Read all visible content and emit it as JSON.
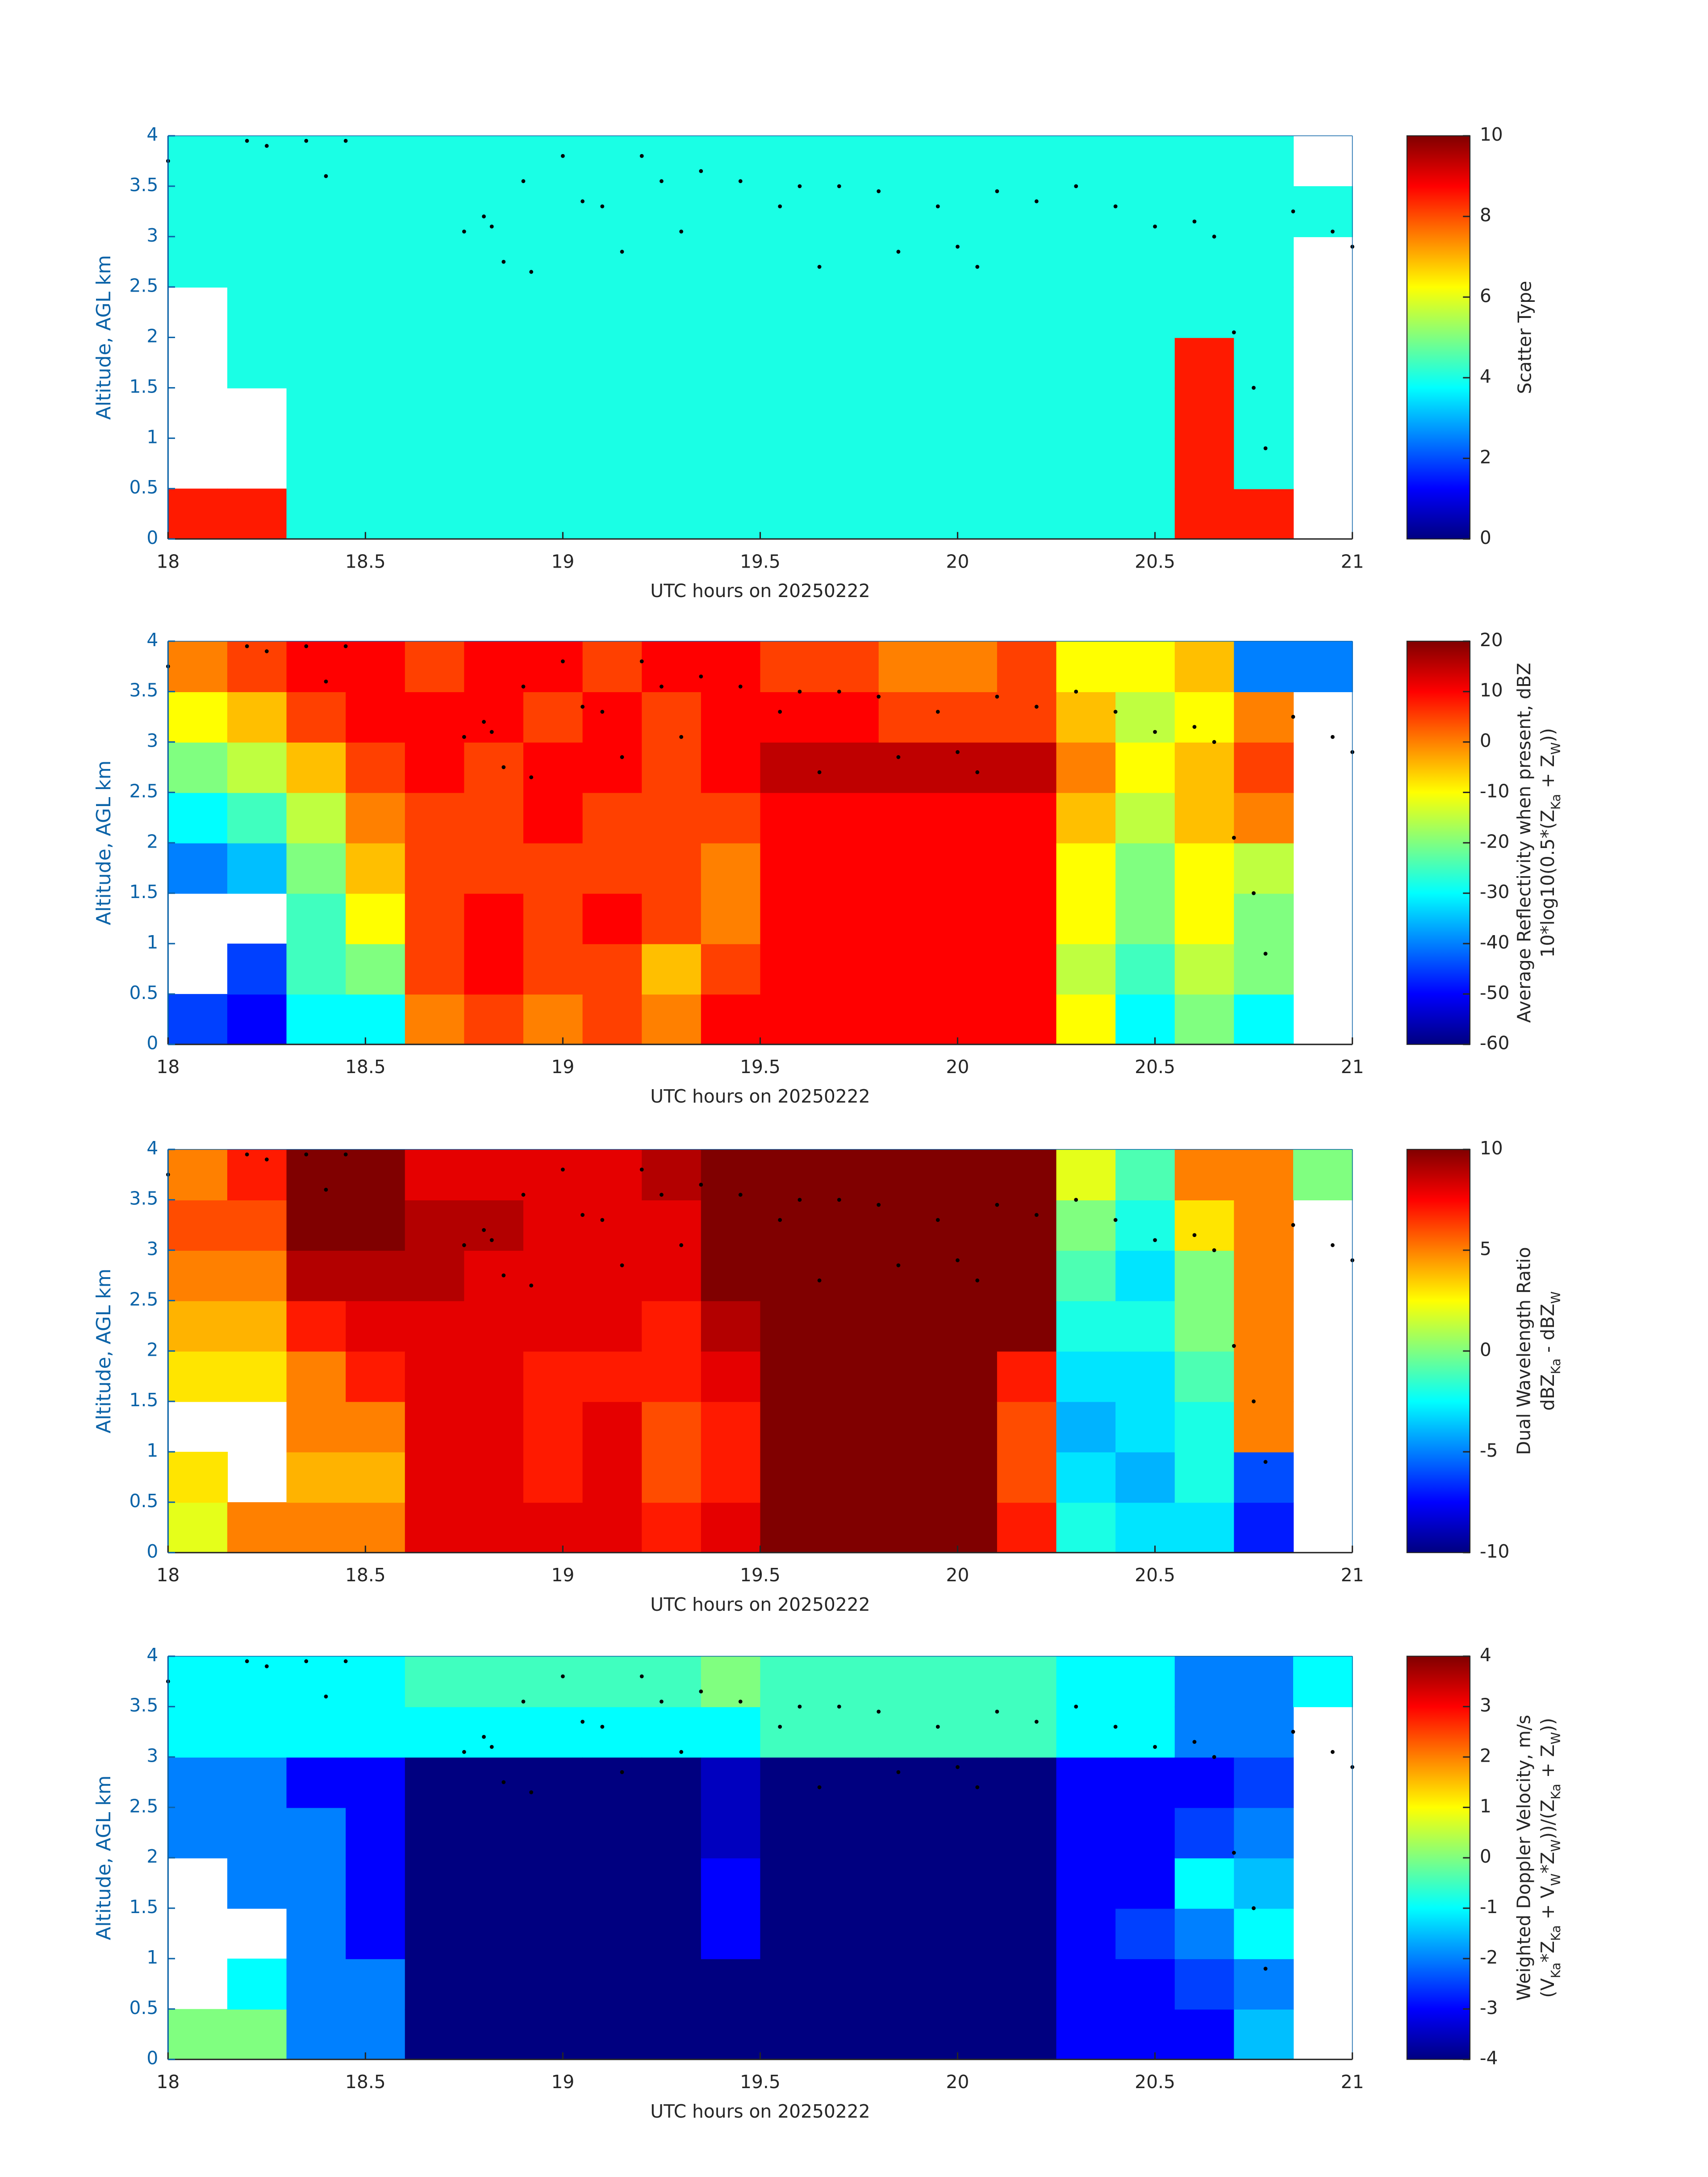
{
  "overlay": {
    "x": [
      18.0,
      18.2,
      18.25,
      18.35,
      18.4,
      18.45,
      18.75,
      18.8,
      18.82,
      18.85,
      18.9,
      18.92,
      19.0,
      19.05,
      19.1,
      19.15,
      19.2,
      19.25,
      19.3,
      19.35,
      19.45,
      19.55,
      19.6,
      19.65,
      19.7,
      19.8,
      19.85,
      19.95,
      20.0,
      20.05,
      20.1,
      20.2,
      20.3,
      20.4,
      20.5,
      20.6,
      20.65,
      20.7,
      20.75,
      20.78,
      20.85,
      20.95,
      21.0
    ],
    "y": [
      3.75,
      3.95,
      3.9,
      3.95,
      3.6,
      3.95,
      3.05,
      3.2,
      3.1,
      2.75,
      3.55,
      2.65,
      3.8,
      3.35,
      3.3,
      2.85,
      3.8,
      3.55,
      3.05,
      3.65,
      3.55,
      3.3,
      3.5,
      2.7,
      3.5,
      3.45,
      2.85,
      3.3,
      2.9,
      2.7,
      3.45,
      3.35,
      3.5,
      3.3,
      3.1,
      3.15,
      3.0,
      2.05,
      1.5,
      0.9,
      3.25,
      3.05,
      2.9
    ]
  },
  "chart_data": [
    {
      "type": "heatmap",
      "xlabel": "UTC hours on 20250222",
      "ylabel": "Altitude, AGL km",
      "colorbar_label": [
        [
          "Scatter Type"
        ]
      ],
      "xlim": [
        18,
        21
      ],
      "xticks": [
        18,
        18.5,
        19,
        19.5,
        20,
        20.5,
        21
      ],
      "ylim": [
        0,
        4
      ],
      "yticks": [
        0,
        0.5,
        1,
        1.5,
        2,
        2.5,
        3,
        3.5,
        4
      ],
      "clim": [
        0,
        10
      ],
      "cticks": [
        0,
        2,
        4,
        6,
        8,
        10
      ],
      "colormap": "jet",
      "x_edges": [
        18,
        18.15,
        18.3,
        18.45,
        18.6,
        18.75,
        18.9,
        19.05,
        19.2,
        19.35,
        19.5,
        19.65,
        19.8,
        19.95,
        20.1,
        20.25,
        20.4,
        20.55,
        20.7,
        20.85,
        21
      ],
      "y_edges": [
        0,
        0.5,
        1,
        1.5,
        2,
        2.5,
        3,
        3.5,
        4
      ],
      "z": [
        [
          8.5,
          null,
          null,
          null,
          null,
          4,
          4,
          4
        ],
        [
          8.5,
          null,
          null,
          4,
          4,
          4,
          4,
          4
        ],
        [
          4,
          4,
          4,
          4,
          4,
          4,
          4,
          4
        ],
        [
          4,
          4,
          4,
          4,
          4,
          4,
          4,
          4
        ],
        [
          4,
          4,
          4,
          4,
          4,
          4,
          4,
          4
        ],
        [
          4,
          4,
          4,
          4,
          4,
          4,
          4,
          4
        ],
        [
          4,
          4,
          4,
          4,
          4,
          4,
          4,
          4
        ],
        [
          4,
          4,
          4,
          4,
          4,
          4,
          4,
          4
        ],
        [
          4,
          4,
          4,
          4,
          4,
          4,
          4,
          4
        ],
        [
          4,
          4,
          4,
          4,
          4,
          4,
          4,
          4
        ],
        [
          4,
          4,
          4,
          4,
          4,
          4,
          4,
          4
        ],
        [
          4,
          4,
          4,
          4,
          4,
          4,
          4,
          4
        ],
        [
          4,
          4,
          4,
          4,
          4,
          4,
          4,
          4
        ],
        [
          4,
          4,
          4,
          4,
          4,
          4,
          4,
          4
        ],
        [
          4,
          4,
          4,
          4,
          4,
          4,
          4,
          4
        ],
        [
          4,
          4,
          4,
          4,
          4,
          4,
          4,
          4
        ],
        [
          4,
          4,
          4,
          4,
          4,
          4,
          4,
          4
        ],
        [
          8.5,
          8.5,
          8.5,
          8.5,
          4,
          4,
          4,
          4
        ],
        [
          8.5,
          4,
          4,
          4,
          4,
          4,
          4,
          4
        ],
        [
          null,
          null,
          null,
          null,
          null,
          null,
          4,
          null
        ]
      ]
    },
    {
      "type": "heatmap",
      "xlabel": "UTC hours on 20250222",
      "ylabel": "Altitude, AGL km",
      "colorbar_label": [
        [
          "Average Reflectivity when present, dBZ"
        ],
        [
          "10*log10(0.5*(Z",
          {
            "sub": "Ka"
          },
          " + Z",
          {
            "sub": "W"
          },
          "))"
        ]
      ],
      "xlim": [
        18,
        21
      ],
      "xticks": [
        18,
        18.5,
        19,
        19.5,
        20,
        20.5,
        21
      ],
      "ylim": [
        0,
        4
      ],
      "yticks": [
        0,
        0.5,
        1,
        1.5,
        2,
        2.5,
        3,
        3.5,
        4
      ],
      "clim": [
        -60,
        20
      ],
      "cticks": [
        -60,
        -50,
        -40,
        -30,
        -20,
        -10,
        0,
        10,
        20
      ],
      "colormap": "jet",
      "x_edges": [
        18,
        18.15,
        18.3,
        18.45,
        18.6,
        18.75,
        18.9,
        19.05,
        19.2,
        19.35,
        19.5,
        19.65,
        19.8,
        19.95,
        20.1,
        20.25,
        20.4,
        20.55,
        20.7,
        20.85,
        21
      ],
      "y_edges": [
        0,
        0.5,
        1,
        1.5,
        2,
        2.5,
        3,
        3.5,
        4
      ],
      "z": [
        [
          -45,
          null,
          null,
          -40,
          -30,
          -20,
          -10,
          0
        ],
        [
          -50,
          -45,
          null,
          -35,
          -25,
          -15,
          -5,
          5
        ],
        [
          -30,
          -25,
          -25,
          -20,
          -15,
          -5,
          5,
          10
        ],
        [
          -30,
          -20,
          -10,
          -5,
          0,
          5,
          10,
          10
        ],
        [
          0,
          5,
          5,
          5,
          5,
          10,
          10,
          5
        ],
        [
          5,
          10,
          10,
          5,
          5,
          5,
          10,
          10
        ],
        [
          0,
          5,
          5,
          5,
          10,
          10,
          5,
          10
        ],
        [
          5,
          5,
          10,
          5,
          5,
          10,
          10,
          5
        ],
        [
          0,
          -5,
          5,
          5,
          5,
          5,
          5,
          10
        ],
        [
          10,
          5,
          0,
          0,
          5,
          10,
          10,
          10
        ],
        [
          10,
          10,
          10,
          10,
          10,
          15,
          10,
          5
        ],
        [
          10,
          10,
          10,
          10,
          10,
          15,
          10,
          5
        ],
        [
          10,
          10,
          10,
          10,
          10,
          15,
          5,
          0
        ],
        [
          10,
          10,
          10,
          10,
          10,
          15,
          5,
          0
        ],
        [
          10,
          10,
          10,
          10,
          10,
          15,
          5,
          5
        ],
        [
          -10,
          -15,
          -10,
          -10,
          -5,
          0,
          -5,
          -10
        ],
        [
          -30,
          -25,
          -20,
          -20,
          -15,
          -10,
          -15,
          -10
        ],
        [
          -20,
          -15,
          -10,
          -10,
          -5,
          -5,
          -10,
          -5
        ],
        [
          -30,
          -20,
          -20,
          -15,
          0,
          5,
          0,
          -40
        ],
        [
          null,
          null,
          null,
          null,
          null,
          null,
          null,
          -40
        ]
      ]
    },
    {
      "type": "heatmap",
      "xlabel": "UTC hours on 20250222",
      "ylabel": "Altitude, AGL km",
      "colorbar_label": [
        [
          "Dual Wavelength Ratio"
        ],
        [
          "dBZ",
          {
            "sub": "Ka"
          },
          " - dBZ",
          {
            "sub": "W"
          }
        ]
      ],
      "xlim": [
        18,
        21
      ],
      "xticks": [
        18,
        18.5,
        19,
        19.5,
        20,
        20.5,
        21
      ],
      "ylim": [
        0,
        4
      ],
      "yticks": [
        0,
        0.5,
        1,
        1.5,
        2,
        2.5,
        3,
        3.5,
        4
      ],
      "clim": [
        -10,
        10
      ],
      "cticks": [
        -10,
        -5,
        0,
        5,
        10
      ],
      "colormap": "jet",
      "x_edges": [
        18,
        18.15,
        18.3,
        18.45,
        18.6,
        18.75,
        18.9,
        19.05,
        19.2,
        19.35,
        19.5,
        19.65,
        19.8,
        19.95,
        20.1,
        20.25,
        20.4,
        20.55,
        20.7,
        20.85,
        21
      ],
      "y_edges": [
        0,
        0.5,
        1,
        1.5,
        2,
        2.5,
        3,
        3.5,
        4
      ],
      "z": [
        [
          2,
          3,
          null,
          3,
          4,
          5,
          6,
          5
        ],
        [
          5,
          null,
          null,
          3,
          4,
          5,
          6,
          7
        ],
        [
          5,
          4,
          5,
          5,
          7,
          9,
          10,
          10
        ],
        [
          5,
          4,
          5,
          7,
          8,
          9,
          10,
          10
        ],
        [
          8,
          8,
          8,
          8,
          8,
          9,
          9,
          8
        ],
        [
          8,
          8,
          8,
          8,
          8,
          8,
          9,
          8
        ],
        [
          8,
          7,
          7,
          7,
          8,
          8,
          8,
          8
        ],
        [
          8,
          8,
          8,
          7,
          8,
          8,
          8,
          8
        ],
        [
          7,
          6,
          6,
          7,
          7,
          8,
          8,
          9
        ],
        [
          8,
          7,
          7,
          8,
          9,
          10,
          10,
          10
        ],
        [
          10,
          10,
          10,
          10,
          10,
          10,
          10,
          10
        ],
        [
          10,
          10,
          10,
          10,
          10,
          10,
          10,
          10
        ],
        [
          10,
          10,
          10,
          10,
          10,
          10,
          10,
          10
        ],
        [
          10,
          10,
          10,
          10,
          10,
          10,
          10,
          10
        ],
        [
          7,
          6,
          6,
          7,
          10,
          10,
          10,
          10
        ],
        [
          -2,
          -3,
          -4,
          -3,
          -2,
          -1,
          0,
          2
        ],
        [
          -3,
          -4,
          -3,
          -3,
          -2,
          -3,
          -2,
          -1
        ],
        [
          -3,
          -2,
          -2,
          -1,
          0,
          0,
          3,
          5
        ],
        [
          -7,
          -6,
          5,
          5,
          5,
          5,
          5,
          5
        ],
        [
          null,
          null,
          null,
          null,
          null,
          null,
          null,
          0
        ]
      ]
    },
    {
      "type": "heatmap",
      "xlabel": "UTC hours on 20250222",
      "ylabel": "Altitude, AGL km",
      "colorbar_label": [
        [
          "Weighted Doppler Velocity, m/s"
        ],
        [
          "(V",
          {
            "sub": "Ka"
          },
          "*Z",
          {
            "sub": "Ka"
          },
          " + V",
          {
            "sub": "W"
          },
          "*Z",
          {
            "sub": "W"
          },
          "))/(Z",
          {
            "sub": "Ka"
          },
          " + Z",
          {
            "sub": "W"
          },
          "))"
        ]
      ],
      "xlim": [
        18,
        21
      ],
      "xticks": [
        18,
        18.5,
        19,
        19.5,
        20,
        20.5,
        21
      ],
      "ylim": [
        0,
        4
      ],
      "yticks": [
        0,
        0.5,
        1,
        1.5,
        2,
        2.5,
        3,
        3.5,
        4
      ],
      "clim": [
        -4,
        4
      ],
      "cticks": [
        -4,
        -3,
        -2,
        -1,
        0,
        1,
        2,
        3,
        4
      ],
      "colormap": "jet",
      "x_edges": [
        18,
        18.15,
        18.3,
        18.45,
        18.6,
        18.75,
        18.9,
        19.05,
        19.2,
        19.35,
        19.5,
        19.65,
        19.8,
        19.95,
        20.1,
        20.25,
        20.4,
        20.55,
        20.7,
        20.85,
        21
      ],
      "y_edges": [
        0,
        0.5,
        1,
        1.5,
        2,
        2.5,
        3,
        3.5,
        4
      ],
      "z": [
        [
          0,
          null,
          null,
          null,
          -2,
          -2,
          -1,
          -1
        ],
        [
          0,
          -1,
          null,
          -2,
          -2,
          -2,
          -1,
          -1
        ],
        [
          -2,
          -2,
          -2,
          -2,
          -2,
          -3,
          -1,
          -1
        ],
        [
          -2,
          -2,
          -3,
          -3,
          -3,
          -3,
          -1,
          -1
        ],
        [
          -4,
          -4,
          -4,
          -4,
          -4,
          -4,
          -1,
          -0.5
        ],
        [
          -4,
          -4,
          -4,
          -4,
          -4,
          -4,
          -1,
          -0.5
        ],
        [
          -4,
          -4,
          -4,
          -4,
          -4,
          -4,
          -1,
          -0.5
        ],
        [
          -4,
          -4,
          -4,
          -4,
          -4,
          -4,
          -1,
          -0.5
        ],
        [
          -4,
          -4,
          -4,
          -4,
          -4,
          -4,
          -1,
          -0.5
        ],
        [
          -4,
          -4,
          -3,
          -3,
          -3.5,
          -3.5,
          -1,
          0
        ],
        [
          -4,
          -4,
          -4,
          -4,
          -4,
          -4,
          -0.5,
          -0.5
        ],
        [
          -4,
          -4,
          -4,
          -4,
          -4,
          -4,
          -0.5,
          -0.5
        ],
        [
          -4,
          -4,
          -4,
          -4,
          -4,
          -4,
          -0.5,
          -0.5
        ],
        [
          -4,
          -4,
          -4,
          -4,
          -4,
          -4,
          -0.5,
          -0.5
        ],
        [
          -4,
          -4,
          -4,
          -4,
          -4,
          -4,
          -0.5,
          -0.5
        ],
        [
          -3,
          -3,
          -3,
          -3,
          -3,
          -3,
          -1,
          -1
        ],
        [
          -3,
          -3,
          -2.5,
          -3,
          -3,
          -3,
          -1,
          -1
        ],
        [
          -3,
          -2.5,
          -2,
          -1,
          -2.5,
          -3,
          -2,
          -2
        ],
        [
          -1.5,
          -2,
          -1,
          -1.5,
          -2,
          -2.5,
          -2,
          -2
        ],
        [
          null,
          null,
          null,
          null,
          null,
          null,
          null,
          -1
        ]
      ]
    }
  ]
}
